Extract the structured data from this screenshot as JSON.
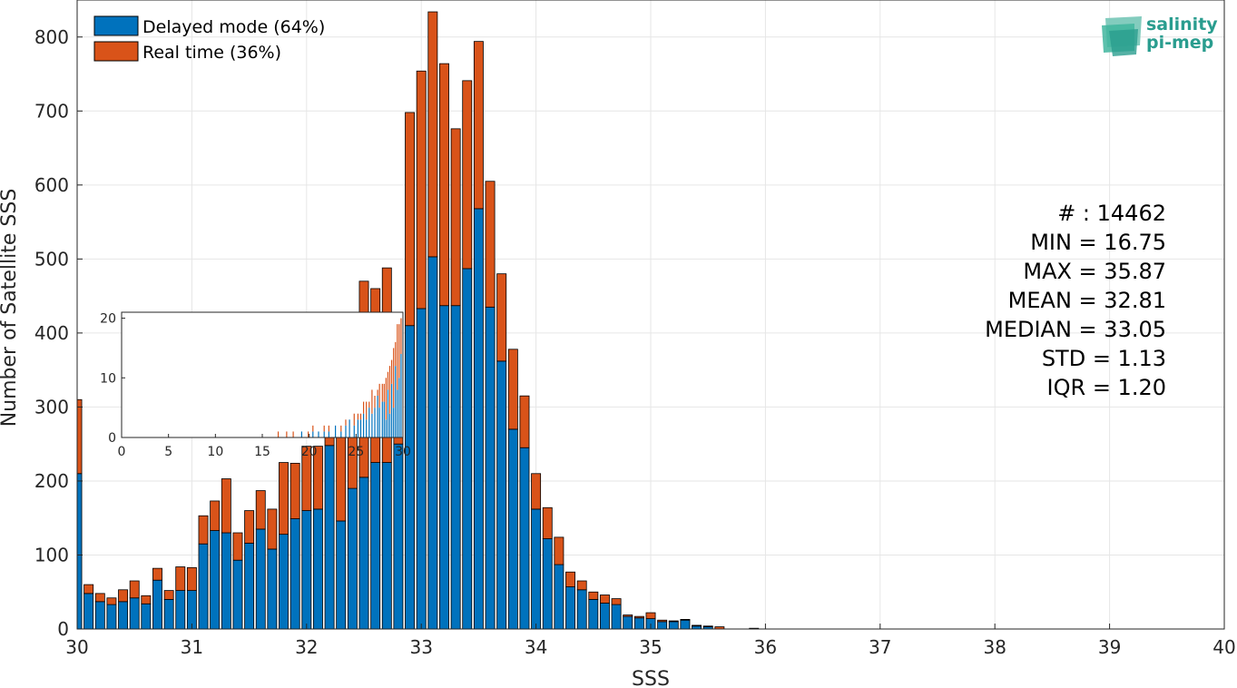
{
  "chart_data": {
    "type": "bar",
    "stacked": true,
    "xlabel": "SSS",
    "ylabel": "Number of Satellite SSS",
    "xlim": [
      30,
      40
    ],
    "ylim": [
      0,
      850
    ],
    "xticks": [
      30,
      31,
      32,
      33,
      34,
      35,
      36,
      37,
      38,
      39,
      40
    ],
    "yticks": [
      0,
      100,
      200,
      300,
      400,
      500,
      600,
      700,
      800
    ],
    "grid": true,
    "legend_position": "top-left",
    "bin_width": 0.1,
    "x": [
      30.0,
      30.1,
      30.2,
      30.3,
      30.4,
      30.5,
      30.6,
      30.7,
      30.8,
      30.9,
      31.0,
      31.1,
      31.2,
      31.3,
      31.4,
      31.5,
      31.6,
      31.7,
      31.8,
      31.9,
      32.0,
      32.1,
      32.2,
      32.3,
      32.4,
      32.5,
      32.6,
      32.7,
      32.8,
      32.9,
      33.0,
      33.1,
      33.2,
      33.3,
      33.4,
      33.5,
      33.6,
      33.7,
      33.8,
      33.9,
      34.0,
      34.1,
      34.2,
      34.3,
      34.4,
      34.5,
      34.6,
      34.7,
      34.8,
      34.9,
      35.0,
      35.1,
      35.2,
      35.3,
      35.4,
      35.5,
      35.6,
      35.9
    ],
    "series": [
      {
        "name": "Delayed mode (64%)",
        "color": "#0072BD",
        "values": [
          210,
          48,
          37,
          33,
          37,
          42,
          34,
          66,
          40,
          52,
          52,
          115,
          133,
          130,
          93,
          116,
          135,
          108,
          128,
          149,
          160,
          162,
          248,
          146,
          190,
          205,
          225,
          225,
          250,
          410,
          433,
          503,
          437,
          437,
          487,
          568,
          435,
          362,
          270,
          245,
          162,
          122,
          87,
          57,
          53,
          40,
          35,
          33,
          17,
          15,
          14,
          10,
          10,
          12,
          4,
          3,
          0,
          1
        ]
      },
      {
        "name": "Real time (36%)",
        "color": "#D95319",
        "values": [
          100,
          12,
          11,
          9,
          16,
          23,
          11,
          16,
          12,
          32,
          31,
          38,
          40,
          73,
          37,
          44,
          52,
          54,
          97,
          75,
          87,
          85,
          15,
          118,
          91,
          265,
          235,
          263,
          157,
          288,
          321,
          331,
          327,
          239,
          254,
          226,
          170,
          118,
          108,
          70,
          48,
          42,
          37,
          20,
          12,
          10,
          11,
          8,
          2,
          2,
          8,
          2,
          1,
          1,
          1,
          1,
          3,
          0
        ]
      }
    ],
    "inset": {
      "type": "bar",
      "stacked": true,
      "xlim": [
        0,
        30
      ],
      "ylim": [
        0,
        21
      ],
      "xticks": [
        0,
        5,
        10,
        15,
        20,
        25,
        30
      ],
      "yticks": [
        0,
        10,
        20
      ],
      "bin_width": 0.1,
      "x": [
        16.7,
        17.6,
        18.3,
        19.2,
        19.9,
        20.4,
        21.0,
        21.6,
        22.1,
        22.8,
        23.4,
        23.9,
        24.3,
        24.8,
        25.2,
        25.5,
        25.8,
        26.1,
        26.4,
        26.7,
        27.0,
        27.3,
        27.5,
        27.8,
        28.0,
        28.2,
        28.4,
        28.6,
        28.8,
        29.0,
        29.2,
        29.4,
        29.6,
        29.8
      ],
      "delayed": [
        0,
        0,
        0,
        1,
        0,
        1,
        1,
        1,
        1,
        2,
        1,
        2,
        3,
        2,
        3,
        3,
        4,
        3,
        5,
        4,
        5,
        7,
        5,
        6,
        6,
        3,
        8,
        4,
        9,
        5,
        12,
        8,
        10,
        14
      ],
      "realtime": [
        1,
        1,
        1,
        0,
        1,
        1,
        0,
        1,
        1,
        0,
        1,
        1,
        0,
        2,
        1,
        1,
        2,
        3,
        1,
        4,
        2,
        1,
        4,
        3,
        3,
        7,
        3,
        8,
        4,
        10,
        4,
        11,
        9,
        6
      ]
    }
  },
  "legend": {
    "delayed_label": "Delayed mode (64%)",
    "realtime_label": "Real time (36%)"
  },
  "stats": {
    "count": "# : 14462",
    "min": "MIN = 16.75",
    "max": "MAX =  35.87",
    "mean": "MEAN = 32.81",
    "median": "MEDIAN = 33.05",
    "std": "STD = 1.13",
    "iqr": "IQR = 1.20"
  },
  "logo": {
    "line1": "salinity",
    "line2": "pi-mep",
    "color": "#2a9d8f"
  }
}
